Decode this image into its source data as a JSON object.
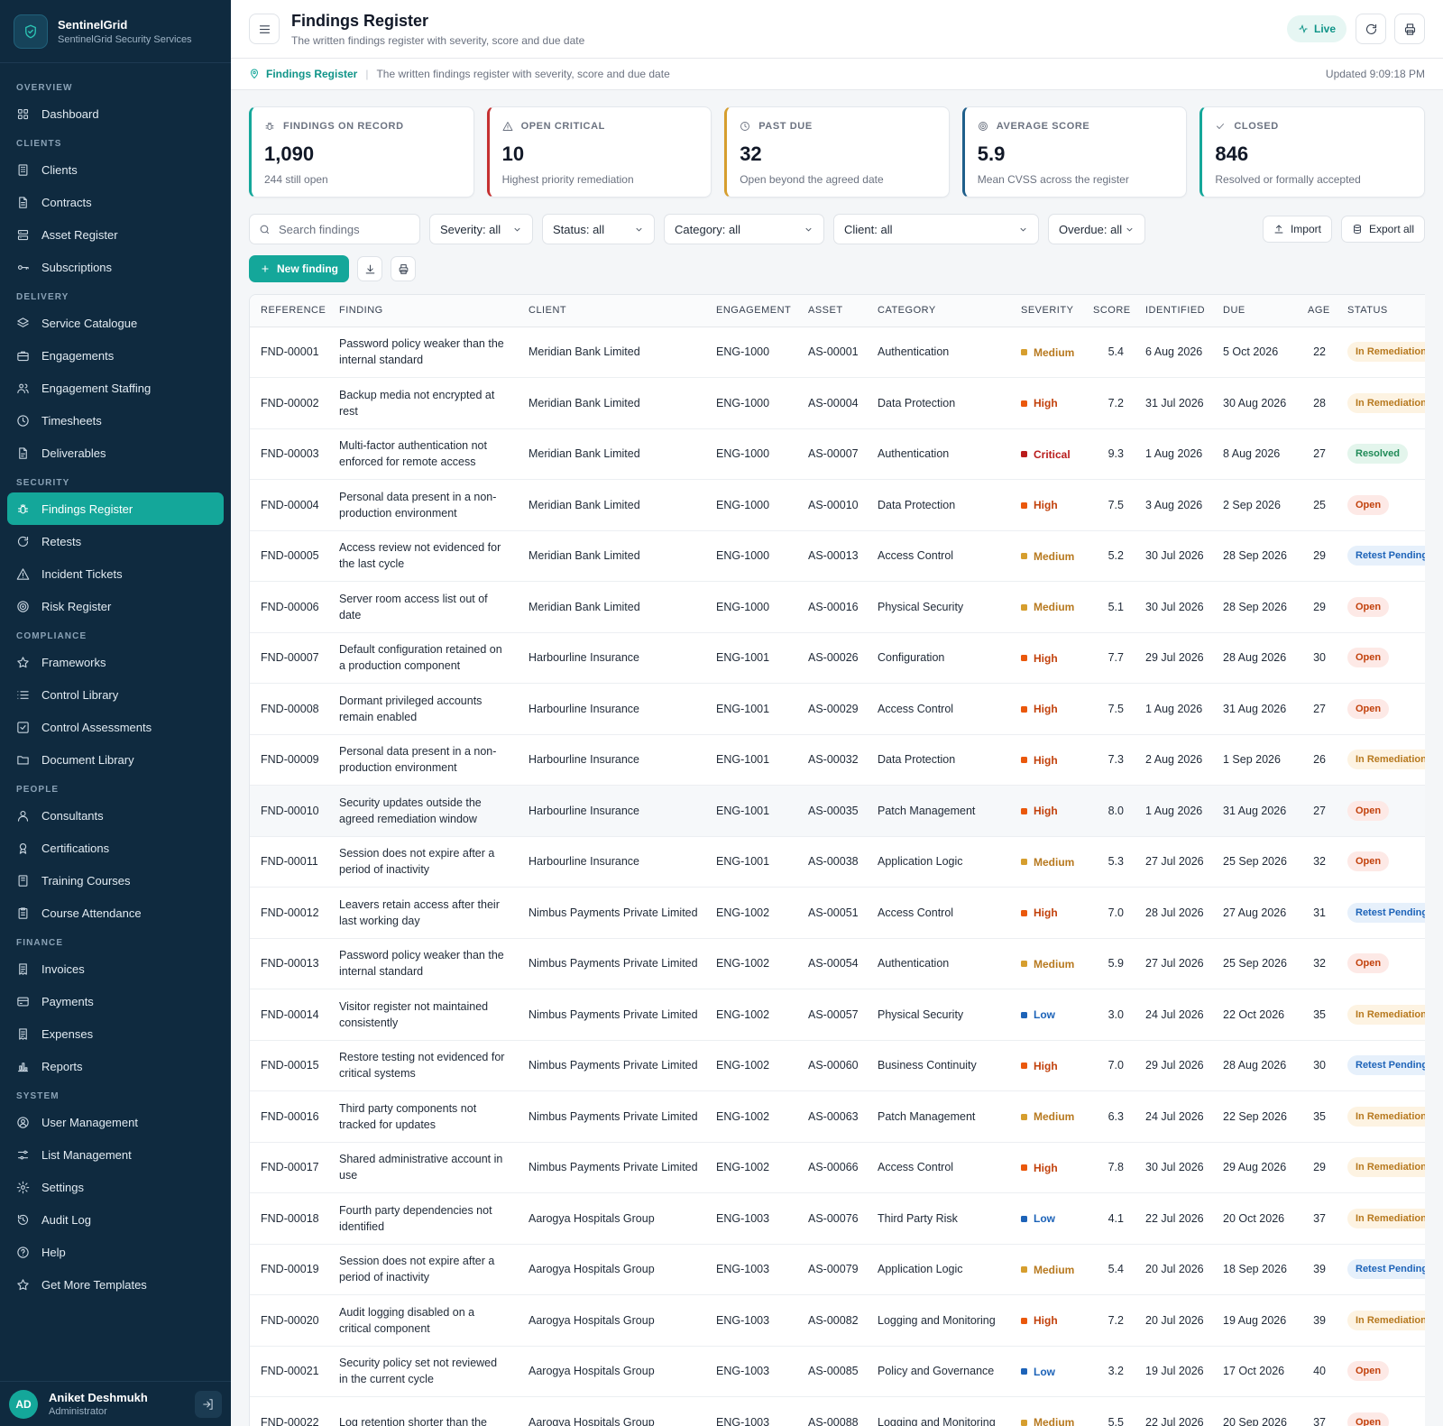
{
  "app": {
    "name": "SentinelGrid",
    "subtitle": "SentinelGrid Security Services"
  },
  "sidebar": {
    "sections": [
      {
        "title": "OVERVIEW",
        "items": [
          {
            "label": "Dashboard",
            "icon": "grid-icon"
          }
        ]
      },
      {
        "title": "CLIENTS",
        "items": [
          {
            "label": "Clients",
            "icon": "building-icon"
          },
          {
            "label": "Contracts",
            "icon": "file-text-icon"
          },
          {
            "label": "Asset Register",
            "icon": "server-icon"
          },
          {
            "label": "Subscriptions",
            "icon": "key-icon"
          }
        ]
      },
      {
        "title": "DELIVERY",
        "items": [
          {
            "label": "Service Catalogue",
            "icon": "layers-icon"
          },
          {
            "label": "Engagements",
            "icon": "briefcase-icon"
          },
          {
            "label": "Engagement Staffing",
            "icon": "users-icon"
          },
          {
            "label": "Timesheets",
            "icon": "clock-icon"
          },
          {
            "label": "Deliverables",
            "icon": "file-icon"
          }
        ]
      },
      {
        "title": "SECURITY",
        "items": [
          {
            "label": "Findings Register",
            "icon": "bug-icon",
            "active": true
          },
          {
            "label": "Retests",
            "icon": "refresh-icon"
          },
          {
            "label": "Incident Tickets",
            "icon": "alert-triangle-icon"
          },
          {
            "label": "Risk Register",
            "icon": "target-icon"
          }
        ]
      },
      {
        "title": "COMPLIANCE",
        "items": [
          {
            "label": "Frameworks",
            "icon": "star-icon"
          },
          {
            "label": "Control Library",
            "icon": "list-icon"
          },
          {
            "label": "Control Assessments",
            "icon": "check-square-icon"
          },
          {
            "label": "Document Library",
            "icon": "folder-icon"
          }
        ]
      },
      {
        "title": "PEOPLE",
        "items": [
          {
            "label": "Consultants",
            "icon": "user-icon"
          },
          {
            "label": "Certifications",
            "icon": "award-icon"
          },
          {
            "label": "Training Courses",
            "icon": "book-icon"
          },
          {
            "label": "Course Attendance",
            "icon": "clipboard-icon"
          }
        ]
      },
      {
        "title": "FINANCE",
        "items": [
          {
            "label": "Invoices",
            "icon": "receipt-icon"
          },
          {
            "label": "Payments",
            "icon": "credit-card-icon"
          },
          {
            "label": "Expenses",
            "icon": "receipt-icon"
          },
          {
            "label": "Reports",
            "icon": "bar-chart-icon"
          }
        ]
      },
      {
        "title": "SYSTEM",
        "items": [
          {
            "label": "User Management",
            "icon": "user-shield-icon"
          },
          {
            "label": "List Management",
            "icon": "sliders-icon"
          },
          {
            "label": "Settings",
            "icon": "gear-icon"
          },
          {
            "label": "Audit Log",
            "icon": "history-icon"
          },
          {
            "label": "Help",
            "icon": "help-circle-icon"
          },
          {
            "label": "Get More Templates",
            "icon": "star-icon"
          }
        ]
      }
    ]
  },
  "user": {
    "initials": "AD",
    "name": "Aniket Deshmukh",
    "role": "Administrator"
  },
  "header": {
    "title": "Findings Register",
    "subtitle": "The written findings register with severity, score and due date",
    "live_label": "Live"
  },
  "breadcrumb": {
    "current": "Findings Register",
    "description": "The written findings register with severity, score and due date",
    "updated": "Updated 9:09:18 PM"
  },
  "stats": [
    {
      "label": "FINDINGS ON RECORD",
      "value": "1,090",
      "sub": "244 still open",
      "icon": "bug-icon",
      "color": "#14a79a"
    },
    {
      "label": "OPEN CRITICAL",
      "value": "10",
      "sub": "Highest priority remediation",
      "icon": "alert-triangle-icon",
      "color": "#c53030"
    },
    {
      "label": "PAST DUE",
      "value": "32",
      "sub": "Open beyond the agreed date",
      "icon": "clock-icon",
      "color": "#d69e2e"
    },
    {
      "label": "AVERAGE SCORE",
      "value": "5.9",
      "sub": "Mean CVSS across the register",
      "icon": "target-icon",
      "color": "#1f5f8b"
    },
    {
      "label": "CLOSED",
      "value": "846",
      "sub": "Resolved or formally accepted",
      "icon": "check-icon",
      "color": "#14a79a"
    }
  ],
  "filters": {
    "search_placeholder": "Search findings",
    "severity": "Severity: all",
    "status": "Status: all",
    "category": "Category: all",
    "client": "Client: all",
    "overdue": "Overdue: all",
    "import_label": "Import",
    "export_label": "Export all"
  },
  "actions": {
    "new_label": "New finding"
  },
  "table": {
    "columns": [
      "REFERENCE",
      "FINDING",
      "CLIENT",
      "ENGAGEMENT",
      "ASSET",
      "CATEGORY",
      "SEVERITY",
      "SCORE",
      "IDENTIFIED",
      "DUE",
      "AGE",
      "STATUS"
    ],
    "rows": [
      {
        "ref": "FND-00001",
        "finding": "Password policy weaker than the internal standard",
        "client": "Meridian Bank Limited",
        "eng": "ENG-1000",
        "asset": "AS-00001",
        "category": "Authentication",
        "severity": "Medium",
        "score": "5.4",
        "identified": "6 Aug 2026",
        "due": "5 Oct 2026",
        "age": "22",
        "status": "In Remediation"
      },
      {
        "ref": "FND-00002",
        "finding": "Backup media not encrypted at rest",
        "client": "Meridian Bank Limited",
        "eng": "ENG-1000",
        "asset": "AS-00004",
        "category": "Data Protection",
        "severity": "High",
        "score": "7.2",
        "identified": "31 Jul 2026",
        "due": "30 Aug 2026",
        "age": "28",
        "status": "In Remediation"
      },
      {
        "ref": "FND-00003",
        "finding": "Multi-factor authentication not enforced for remote access",
        "client": "Meridian Bank Limited",
        "eng": "ENG-1000",
        "asset": "AS-00007",
        "category": "Authentication",
        "severity": "Critical",
        "score": "9.3",
        "identified": "1 Aug 2026",
        "due": "8 Aug 2026",
        "age": "27",
        "status": "Resolved"
      },
      {
        "ref": "FND-00004",
        "finding": "Personal data present in a non-production environment",
        "client": "Meridian Bank Limited",
        "eng": "ENG-1000",
        "asset": "AS-00010",
        "category": "Data Protection",
        "severity": "High",
        "score": "7.5",
        "identified": "3 Aug 2026",
        "due": "2 Sep 2026",
        "age": "25",
        "status": "Open"
      },
      {
        "ref": "FND-00005",
        "finding": "Access review not evidenced for the last cycle",
        "client": "Meridian Bank Limited",
        "eng": "ENG-1000",
        "asset": "AS-00013",
        "category": "Access Control",
        "severity": "Medium",
        "score": "5.2",
        "identified": "30 Jul 2026",
        "due": "28 Sep 2026",
        "age": "29",
        "status": "Retest Pending"
      },
      {
        "ref": "FND-00006",
        "finding": "Server room access list out of date",
        "client": "Meridian Bank Limited",
        "eng": "ENG-1000",
        "asset": "AS-00016",
        "category": "Physical Security",
        "severity": "Medium",
        "score": "5.1",
        "identified": "30 Jul 2026",
        "due": "28 Sep 2026",
        "age": "29",
        "status": "Open"
      },
      {
        "ref": "FND-00007",
        "finding": "Default configuration retained on a production component",
        "client": "Harbourline Insurance",
        "eng": "ENG-1001",
        "asset": "AS-00026",
        "category": "Configuration",
        "severity": "High",
        "score": "7.7",
        "identified": "29 Jul 2026",
        "due": "28 Aug 2026",
        "age": "30",
        "status": "Open"
      },
      {
        "ref": "FND-00008",
        "finding": "Dormant privileged accounts remain enabled",
        "client": "Harbourline Insurance",
        "eng": "ENG-1001",
        "asset": "AS-00029",
        "category": "Access Control",
        "severity": "High",
        "score": "7.5",
        "identified": "1 Aug 2026",
        "due": "31 Aug 2026",
        "age": "27",
        "status": "Open"
      },
      {
        "ref": "FND-00009",
        "finding": "Personal data present in a non-production environment",
        "client": "Harbourline Insurance",
        "eng": "ENG-1001",
        "asset": "AS-00032",
        "category": "Data Protection",
        "severity": "High",
        "score": "7.3",
        "identified": "2 Aug 2026",
        "due": "1 Sep 2026",
        "age": "26",
        "status": "In Remediation"
      },
      {
        "ref": "FND-00010",
        "finding": "Security updates outside the agreed remediation window",
        "client": "Harbourline Insurance",
        "eng": "ENG-1001",
        "asset": "AS-00035",
        "category": "Patch Management",
        "severity": "High",
        "score": "8.0",
        "identified": "1 Aug 2026",
        "due": "31 Aug 2026",
        "age": "27",
        "status": "Open"
      },
      {
        "ref": "FND-00011",
        "finding": "Session does not expire after a period of inactivity",
        "client": "Harbourline Insurance",
        "eng": "ENG-1001",
        "asset": "AS-00038",
        "category": "Application Logic",
        "severity": "Medium",
        "score": "5.3",
        "identified": "27 Jul 2026",
        "due": "25 Sep 2026",
        "age": "32",
        "status": "Open"
      },
      {
        "ref": "FND-00012",
        "finding": "Leavers retain access after their last working day",
        "client": "Nimbus Payments Private Limited",
        "eng": "ENG-1002",
        "asset": "AS-00051",
        "category": "Access Control",
        "severity": "High",
        "score": "7.0",
        "identified": "28 Jul 2026",
        "due": "27 Aug 2026",
        "age": "31",
        "status": "Retest Pending"
      },
      {
        "ref": "FND-00013",
        "finding": "Password policy weaker than the internal standard",
        "client": "Nimbus Payments Private Limited",
        "eng": "ENG-1002",
        "asset": "AS-00054",
        "category": "Authentication",
        "severity": "Medium",
        "score": "5.9",
        "identified": "27 Jul 2026",
        "due": "25 Sep 2026",
        "age": "32",
        "status": "Open"
      },
      {
        "ref": "FND-00014",
        "finding": "Visitor register not maintained consistently",
        "client": "Nimbus Payments Private Limited",
        "eng": "ENG-1002",
        "asset": "AS-00057",
        "category": "Physical Security",
        "severity": "Low",
        "score": "3.0",
        "identified": "24 Jul 2026",
        "due": "22 Oct 2026",
        "age": "35",
        "status": "In Remediation"
      },
      {
        "ref": "FND-00015",
        "finding": "Restore testing not evidenced for critical systems",
        "client": "Nimbus Payments Private Limited",
        "eng": "ENG-1002",
        "asset": "AS-00060",
        "category": "Business Continuity",
        "severity": "High",
        "score": "7.0",
        "identified": "29 Jul 2026",
        "due": "28 Aug 2026",
        "age": "30",
        "status": "Retest Pending"
      },
      {
        "ref": "FND-00016",
        "finding": "Third party components not tracked for updates",
        "client": "Nimbus Payments Private Limited",
        "eng": "ENG-1002",
        "asset": "AS-00063",
        "category": "Patch Management",
        "severity": "Medium",
        "score": "6.3",
        "identified": "24 Jul 2026",
        "due": "22 Sep 2026",
        "age": "35",
        "status": "In Remediation"
      },
      {
        "ref": "FND-00017",
        "finding": "Shared administrative account in use",
        "client": "Nimbus Payments Private Limited",
        "eng": "ENG-1002",
        "asset": "AS-00066",
        "category": "Access Control",
        "severity": "High",
        "score": "7.8",
        "identified": "30 Jul 2026",
        "due": "29 Aug 2026",
        "age": "29",
        "status": "In Remediation"
      },
      {
        "ref": "FND-00018",
        "finding": "Fourth party dependencies not identified",
        "client": "Aarogya Hospitals Group",
        "eng": "ENG-1003",
        "asset": "AS-00076",
        "category": "Third Party Risk",
        "severity": "Low",
        "score": "4.1",
        "identified": "22 Jul 2026",
        "due": "20 Oct 2026",
        "age": "37",
        "status": "In Remediation"
      },
      {
        "ref": "FND-00019",
        "finding": "Session does not expire after a period of inactivity",
        "client": "Aarogya Hospitals Group",
        "eng": "ENG-1003",
        "asset": "AS-00079",
        "category": "Application Logic",
        "severity": "Medium",
        "score": "5.4",
        "identified": "20 Jul 2026",
        "due": "18 Sep 2026",
        "age": "39",
        "status": "Retest Pending"
      },
      {
        "ref": "FND-00020",
        "finding": "Audit logging disabled on a critical component",
        "client": "Aarogya Hospitals Group",
        "eng": "ENG-1003",
        "asset": "AS-00082",
        "category": "Logging and Monitoring",
        "severity": "High",
        "score": "7.2",
        "identified": "20 Jul 2026",
        "due": "19 Aug 2026",
        "age": "39",
        "status": "In Remediation"
      },
      {
        "ref": "FND-00021",
        "finding": "Security policy set not reviewed in the current cycle",
        "client": "Aarogya Hospitals Group",
        "eng": "ENG-1003",
        "asset": "AS-00085",
        "category": "Policy and Governance",
        "severity": "Low",
        "score": "3.2",
        "identified": "19 Jul 2026",
        "due": "17 Oct 2026",
        "age": "40",
        "status": "Open"
      },
      {
        "ref": "FND-00022",
        "finding": "Log retention shorter than the",
        "client": "Aarogya Hospitals Group",
        "eng": "ENG-1003",
        "asset": "AS-00088",
        "category": "Logging and Monitoring",
        "severity": "Medium",
        "score": "5.5",
        "identified": "22 Jul 2026",
        "due": "20 Sep 2026",
        "age": "37",
        "status": "Open"
      }
    ]
  }
}
